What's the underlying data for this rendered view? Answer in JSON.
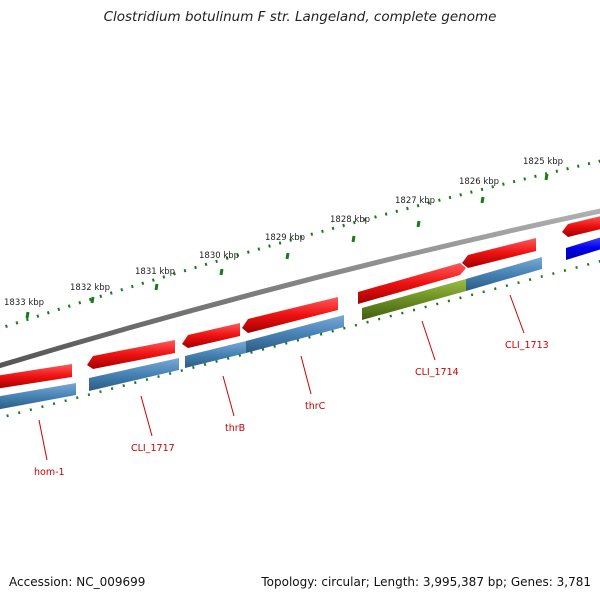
{
  "title": "Clostridium botulinum F str. Langeland, complete genome",
  "footer": {
    "accession": "Accession: NC_009699",
    "topology": "Topology: circular; Length: 3,995,387 bp; Genes: 3,781"
  },
  "scale_labels": [
    "1833 kbp",
    "1832 kbp",
    "1831 kbp",
    "1830 kbp",
    "1829 kbp",
    "1828 kbp",
    "1827 kbp",
    "1826 kbp",
    "1825 kbp"
  ],
  "gene_labels": [
    "hom-1",
    "CLI_1717",
    "thrB",
    "thrC",
    "CLI_1714",
    "CLI_1713"
  ],
  "colors": {
    "backbone": "#808080",
    "scale": "#1a7a1a",
    "gene": "#ee1111",
    "cds": "#4682b4",
    "cds_highlight": "#6b8e23",
    "right_gene": "#0000ee",
    "label": "#cc0000"
  }
}
